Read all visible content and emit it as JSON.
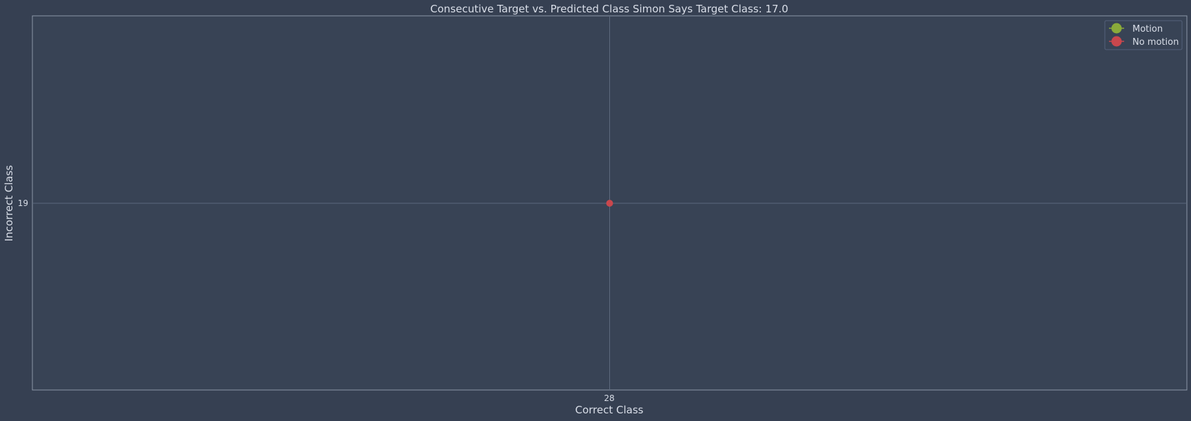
{
  "chart_data": {
    "type": "scatter",
    "title": "Consecutive Target vs. Predicted Class Simon Says Target Class: 17.0",
    "xlabel": "Correct Class",
    "ylabel": "Incorrect Class",
    "x_ticks": [
      "28"
    ],
    "y_ticks": [
      "19"
    ],
    "grid": true,
    "legend_position": "top-right",
    "series": [
      {
        "name": "Motion",
        "color": "#8aaa3a",
        "points": []
      },
      {
        "name": "No motion",
        "color": "#c9474d",
        "points": [
          {
            "x": 28,
            "y": 19
          }
        ]
      }
    ]
  },
  "colors": {
    "background": "#364052",
    "axes_edge": "#8c97a8",
    "grid": "#5d6a7e",
    "text": "#d9dee8"
  }
}
